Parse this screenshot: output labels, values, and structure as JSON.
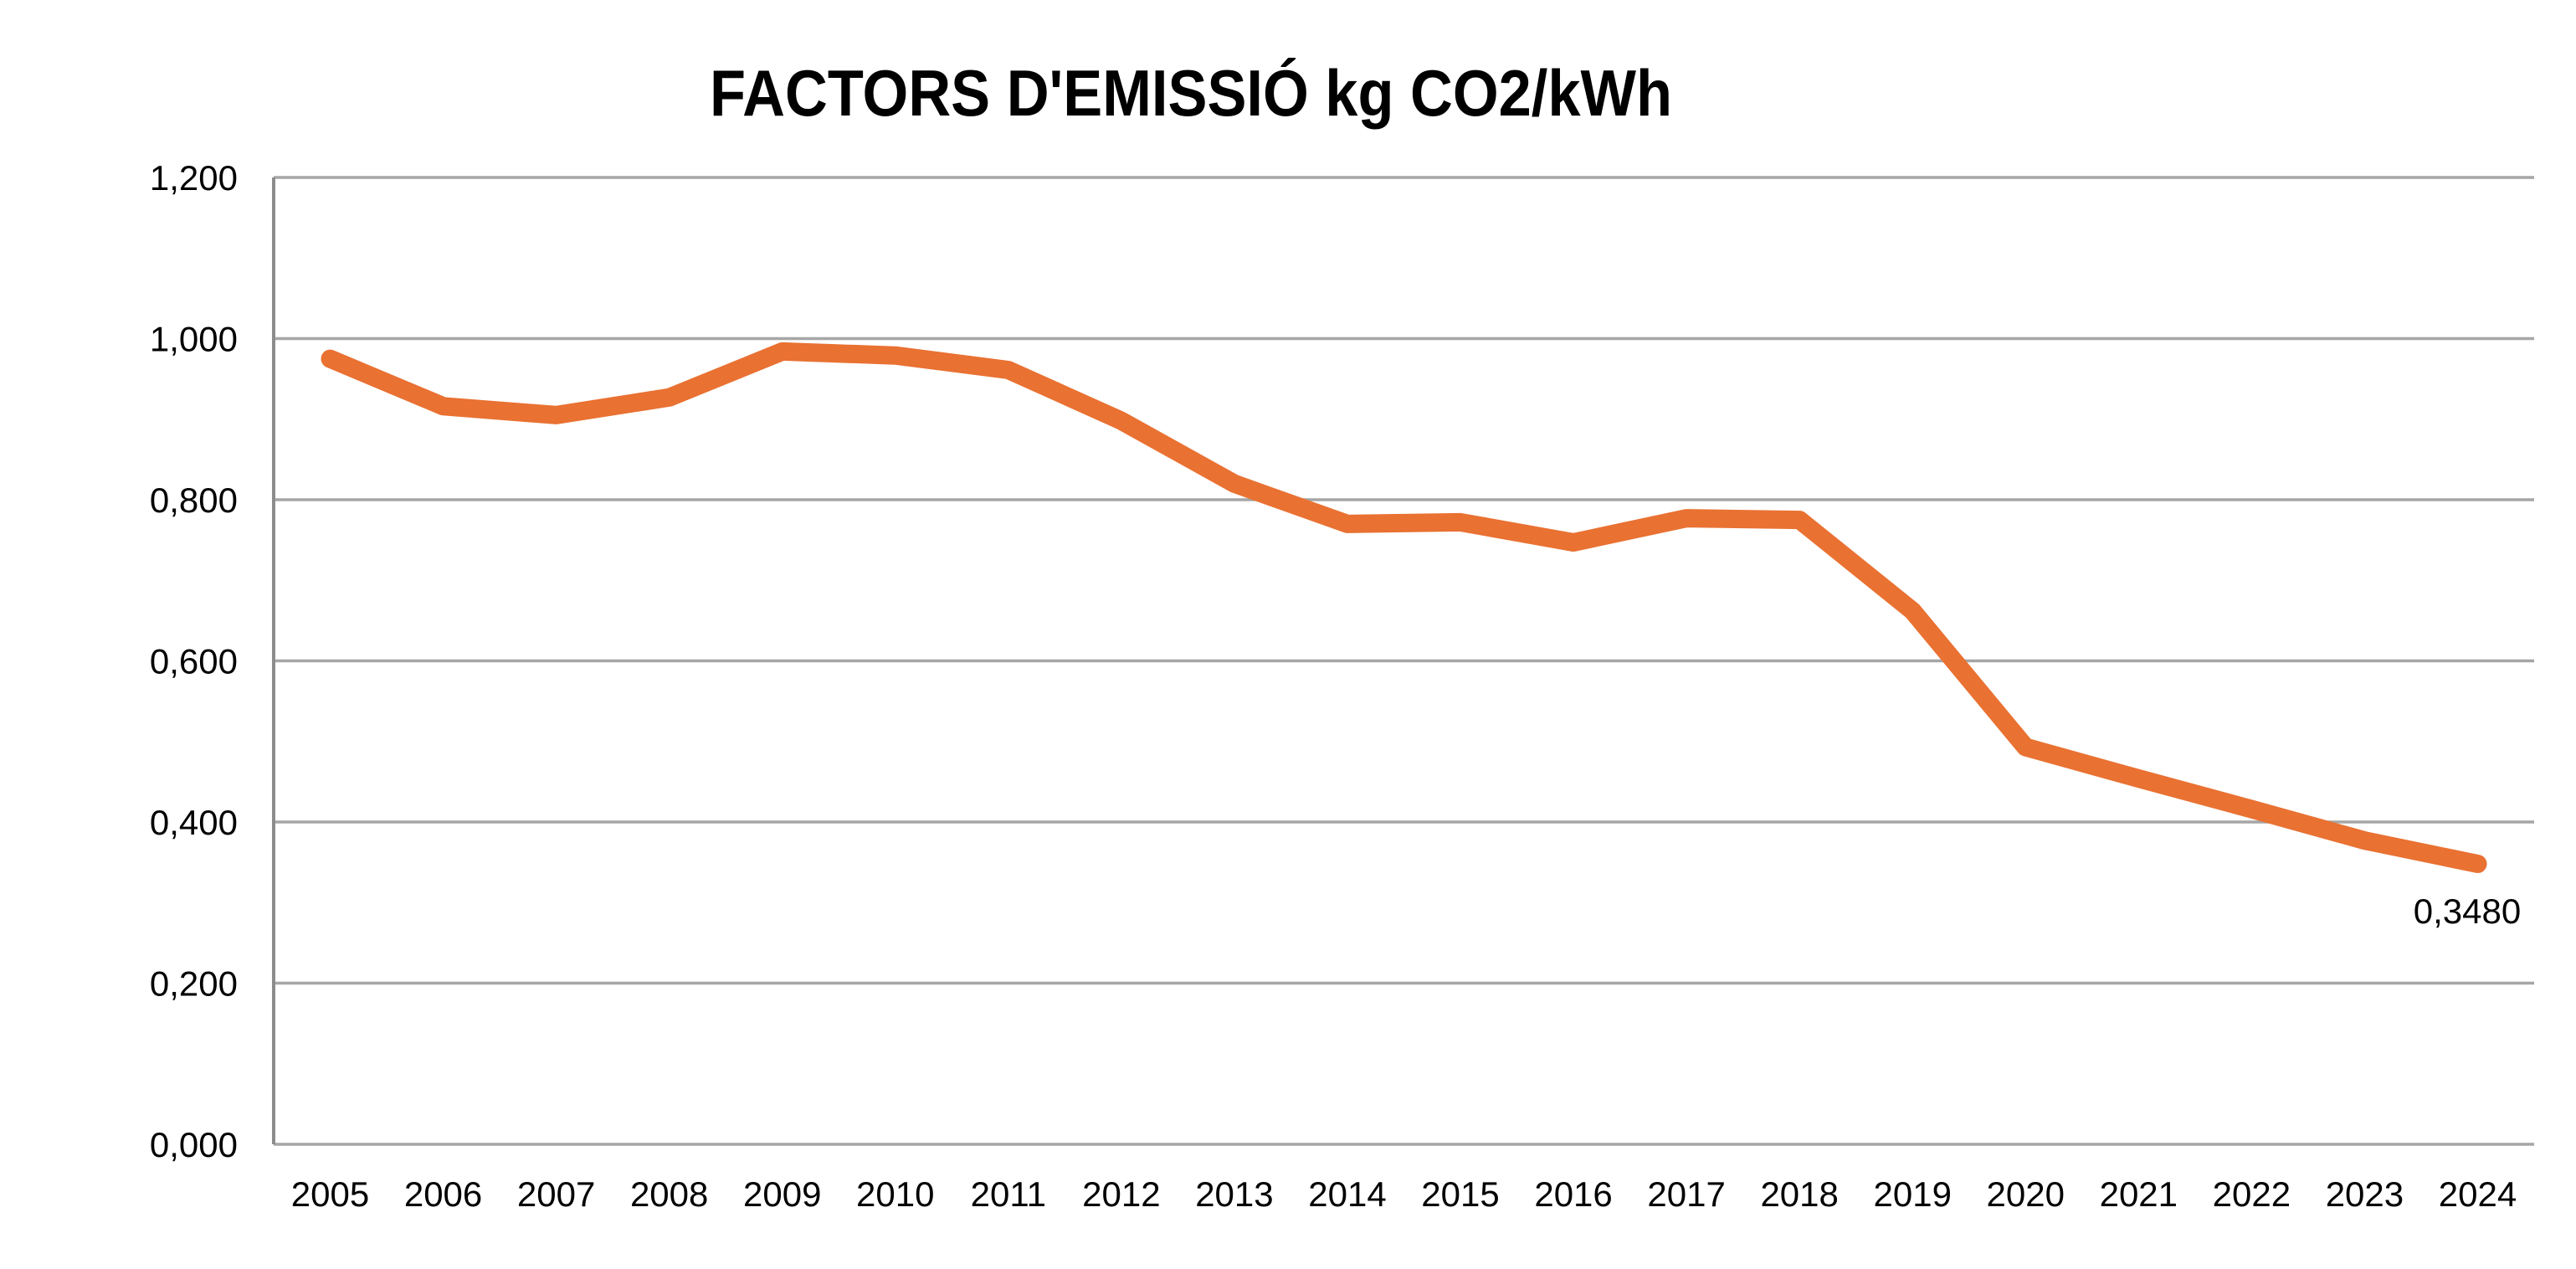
{
  "chart_data": {
    "type": "line",
    "title": "FACTORS D'EMISSIÓ kg CO2/kWh",
    "categories": [
      "2005",
      "2006",
      "2007",
      "2008",
      "2009",
      "2010",
      "2011",
      "2012",
      "2013",
      "2014",
      "2015",
      "2016",
      "2017",
      "2018",
      "2019",
      "2020",
      "2021",
      "2022",
      "2023",
      "2024"
    ],
    "values": [
      0.975,
      0.916,
      0.905,
      0.927,
      0.984,
      0.979,
      0.961,
      0.898,
      0.82,
      0.77,
      0.772,
      0.747,
      0.777,
      0.775,
      0.662,
      0.493,
      0.454,
      0.416,
      0.377,
      0.348
    ],
    "xlabel": "",
    "ylabel": "",
    "ylim": [
      0,
      1.2
    ],
    "y_tick_values": [
      0,
      0.2,
      0.4,
      0.6,
      0.8,
      1.0,
      1.2
    ],
    "y_tick_labels": [
      "0,000",
      "0,200",
      "0,400",
      "0,600",
      "0,800",
      "1,000",
      "1,200"
    ],
    "grid": "horizontal",
    "legend_position": "none",
    "last_point_label": "0,3480",
    "decimal_separator": ",",
    "colors": {
      "line": "#E97132",
      "gridline": "#A6A6A6",
      "axis": "#8C8C8C",
      "text": "#000000"
    }
  }
}
